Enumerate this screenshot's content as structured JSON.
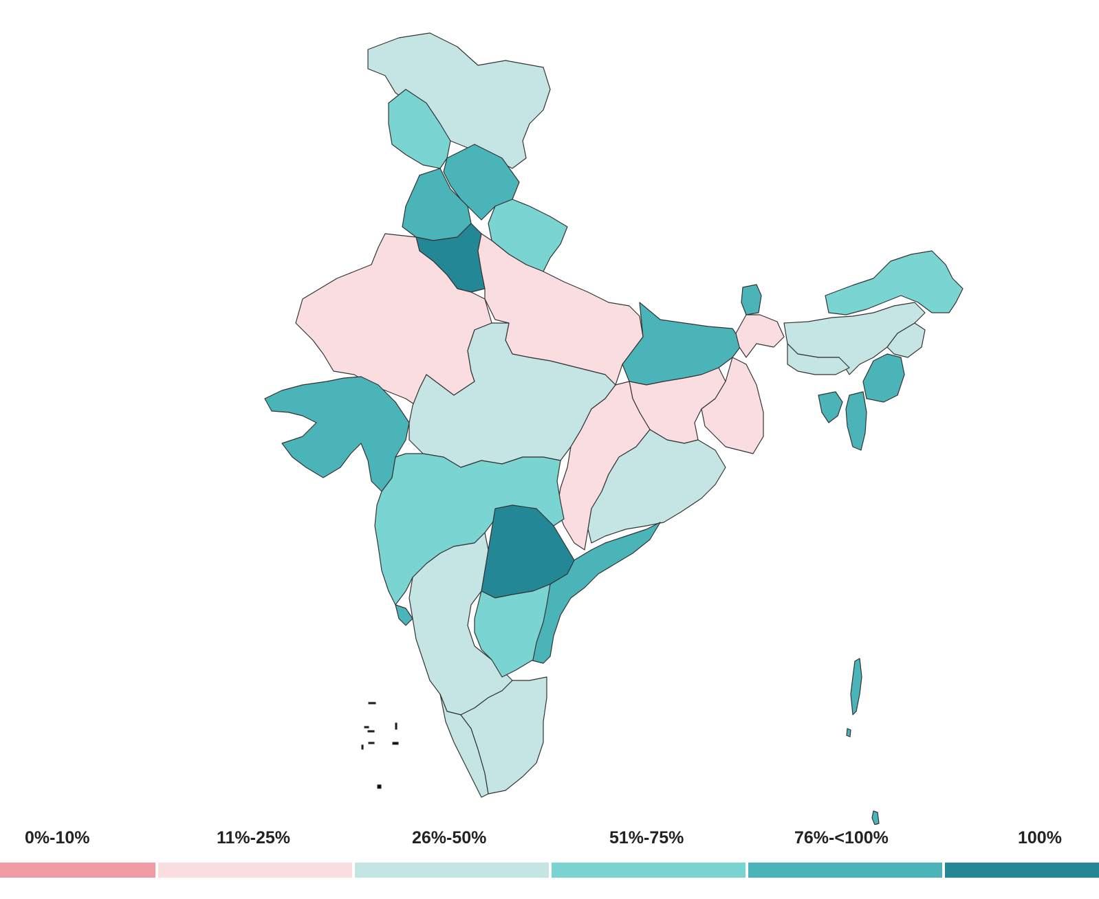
{
  "colors": {
    "0%-10%": "#f29aa4",
    "11%-25%": "#f9dde1",
    "26%-50%": "#c4e5e4",
    "51%-75%": "#7ad4d1",
    "76%-<100%": "#4ab4b9",
    "100%": "#238796"
  },
  "legend": {
    "items": [
      {
        "label": "0%-10%",
        "color": "#f29aa4"
      },
      {
        "label": "11%-25%",
        "color": "#f9dde1"
      },
      {
        "label": "26%-50%",
        "color": "#c4e5e4"
      },
      {
        "label": "51%-75%",
        "color": "#7ad4d1"
      },
      {
        "label": "76%-<100%",
        "color": "#4ab4b9"
      },
      {
        "label": "100%",
        "color": "#238796"
      }
    ]
  },
  "regions": [
    {
      "name": "jammu-kashmir-ladakh",
      "band": "26%-50%"
    },
    {
      "name": "himachal-pradesh",
      "band": "51%-75%"
    },
    {
      "name": "punjab",
      "band": "76%-<100%"
    },
    {
      "name": "himachal-east",
      "band": "76%-<100%"
    },
    {
      "name": "haryana",
      "band": "100%"
    },
    {
      "name": "uttarakhand",
      "band": "51%-75%"
    },
    {
      "name": "rajasthan",
      "band": "11%-25%"
    },
    {
      "name": "uttar-pradesh",
      "band": "11%-25%"
    },
    {
      "name": "gujarat",
      "band": "76%-<100%"
    },
    {
      "name": "madhya-pradesh",
      "band": "26%-50%"
    },
    {
      "name": "bihar",
      "band": "76%-<100%"
    },
    {
      "name": "jharkhand",
      "band": "11%-25%"
    },
    {
      "name": "west-bengal",
      "band": "11%-25%"
    },
    {
      "name": "chhattisgarh",
      "band": "11%-25%"
    },
    {
      "name": "odisha",
      "band": "26%-50%"
    },
    {
      "name": "maharashtra",
      "band": "51%-75%"
    },
    {
      "name": "telangana",
      "band": "100%"
    },
    {
      "name": "andhra-pradesh",
      "band": "76%-<100%"
    },
    {
      "name": "karnataka",
      "band": "26%-50%"
    },
    {
      "name": "goa",
      "band": "76%-<100%"
    },
    {
      "name": "kerala",
      "band": "26%-50%"
    },
    {
      "name": "tamil-nadu",
      "band": "26%-50%"
    },
    {
      "name": "rayalaseema",
      "band": "51%-75%"
    },
    {
      "name": "sikkim",
      "band": "76%-<100%"
    },
    {
      "name": "arunachal-pradesh",
      "band": "51%-75%"
    },
    {
      "name": "assam",
      "band": "26%-50%"
    },
    {
      "name": "meghalaya",
      "band": "26%-50%"
    },
    {
      "name": "nagaland",
      "band": "26%-50%"
    },
    {
      "name": "manipur",
      "band": "76%-<100%"
    },
    {
      "name": "mizoram",
      "band": "76%-<100%"
    },
    {
      "name": "tripura",
      "band": "76%-<100%"
    },
    {
      "name": "north-bengal",
      "band": "11%-25%"
    },
    {
      "name": "andaman-nicobar",
      "band": "76%-<100%"
    }
  ]
}
